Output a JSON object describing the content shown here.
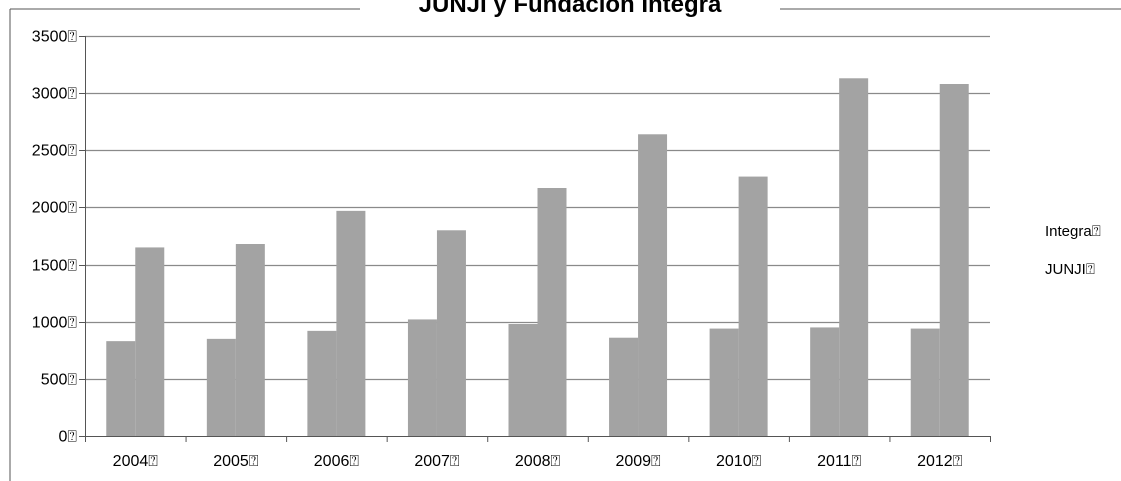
{
  "chart_data": {
    "type": "bar",
    "title": "JUNJI y Fundación Integra",
    "categories": [
      "2004⍰",
      "2005⍰",
      "2006⍰",
      "2007⍰",
      "2008⍰",
      "2009⍰",
      "2010⍰",
      "2011⍰",
      "2012⍰"
    ],
    "series": [
      {
        "name": "Integra⍰",
        "values": [
          830,
          850,
          920,
          1020,
          980,
          860,
          940,
          950,
          940
        ],
        "color": "#a3a3a3"
      },
      {
        "name": "JUNJI⍰",
        "values": [
          1650,
          1680,
          1970,
          1800,
          2170,
          2640,
          2270,
          3130,
          3080
        ],
        "color": "#a3a3a3"
      }
    ],
    "yticks": [
      "0⍰",
      "500⍰",
      "1000⍰",
      "1500⍰",
      "2000⍰",
      "2500⍰",
      "3000⍰",
      "3500⍰"
    ],
    "ylim": [
      0,
      3500
    ],
    "xlabel": "",
    "ylabel": "",
    "grid": true,
    "legend_position": "right"
  }
}
